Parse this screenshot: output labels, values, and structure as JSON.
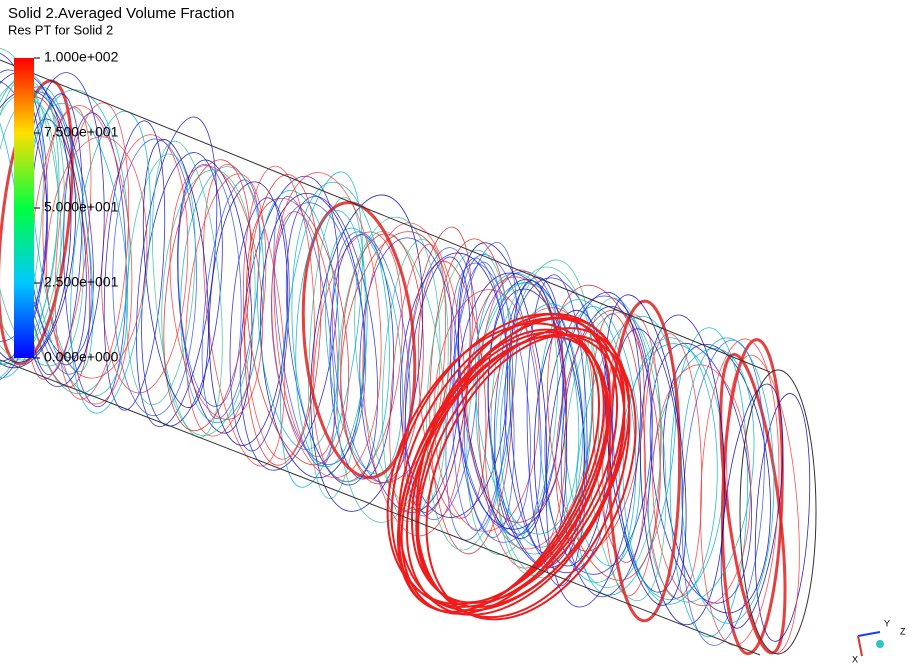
{
  "legend": {
    "title": "Solid 2.Averaged Volume Fraction",
    "subtitle": "Res PT for Solid 2",
    "range": [
      0,
      100
    ],
    "ticks": [
      {
        "value": 100,
        "label": "1.000e+002"
      },
      {
        "value": 75,
        "label": "7.500e+001"
      },
      {
        "value": 50,
        "label": "5.000e+001"
      },
      {
        "value": 25,
        "label": "2.500e+001"
      },
      {
        "value": 0,
        "label": "0.000e+000"
      }
    ]
  },
  "triad": {
    "labels": [
      "Y",
      "Z",
      "X"
    ]
  }
}
